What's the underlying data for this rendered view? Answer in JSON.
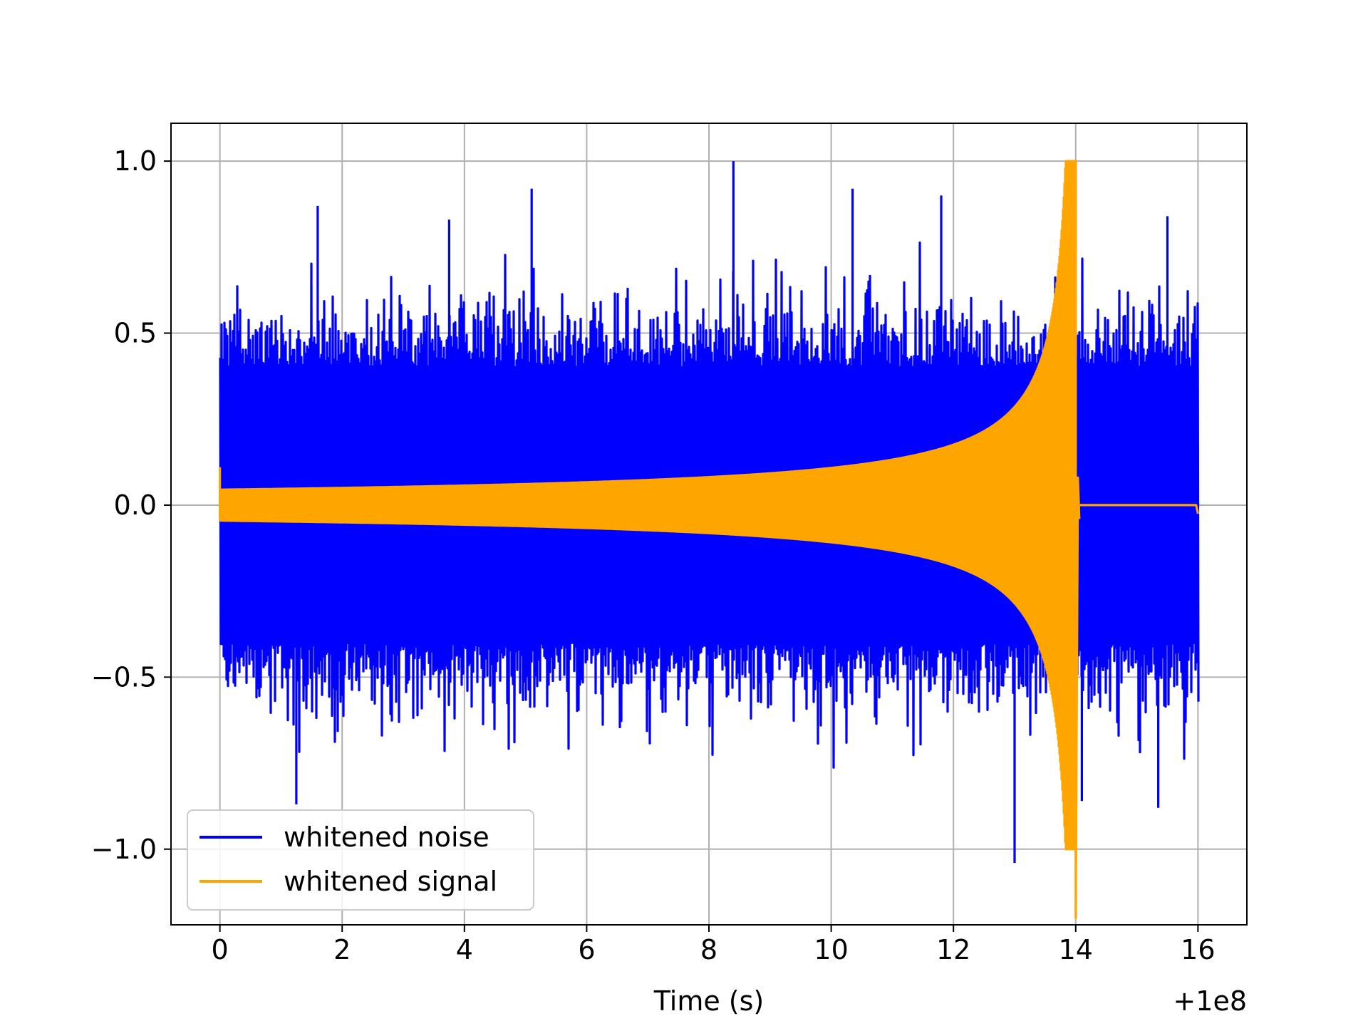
{
  "chart_data": {
    "type": "line",
    "xlabel": "Time (s)",
    "ylabel": "",
    "x_offset_label": "+1e8",
    "xlim": [
      -0.8,
      16.8
    ],
    "ylim": [
      -1.22,
      1.11
    ],
    "x_ticks": [
      0,
      2,
      4,
      6,
      8,
      10,
      12,
      14,
      16
    ],
    "x_tick_labels": [
      "0",
      "2",
      "4",
      "6",
      "8",
      "10",
      "12",
      "14",
      "16"
    ],
    "y_ticks": [
      -1.0,
      -0.5,
      0.0,
      0.5,
      1.0
    ],
    "y_tick_labels": [
      "−1.0",
      "−0.5",
      "0.0",
      "0.5",
      "1.0"
    ],
    "grid": true,
    "legend_position": "lower-left",
    "series": [
      {
        "name": "whitened noise",
        "color": "#0000ff",
        "x_range": [
          0,
          16
        ],
        "typical_amplitude": 0.4,
        "max": 1.0,
        "min": -1.04,
        "peaks": [
          {
            "x": 8.4,
            "y": 1.0
          },
          {
            "x": 5.1,
            "y": 0.92
          },
          {
            "x": 10.35,
            "y": 0.92
          },
          {
            "x": 11.8,
            "y": 0.9
          },
          {
            "x": 1.6,
            "y": 0.87
          },
          {
            "x": 15.5,
            "y": 0.84
          },
          {
            "x": 3.75,
            "y": 0.83
          },
          {
            "x": 13.0,
            "y": -1.04
          },
          {
            "x": 1.25,
            "y": -0.87
          },
          {
            "x": 14.1,
            "y": -0.86
          },
          {
            "x": 15.35,
            "y": -0.88
          }
        ]
      },
      {
        "name": "whitened signal",
        "color": "#ffa500",
        "x_range": [
          0,
          16
        ],
        "chirp_end": 14.0,
        "max": 1.0,
        "min": -1.2,
        "start_envelope": 0.045,
        "post_merger_value": 0.0
      }
    ]
  }
}
